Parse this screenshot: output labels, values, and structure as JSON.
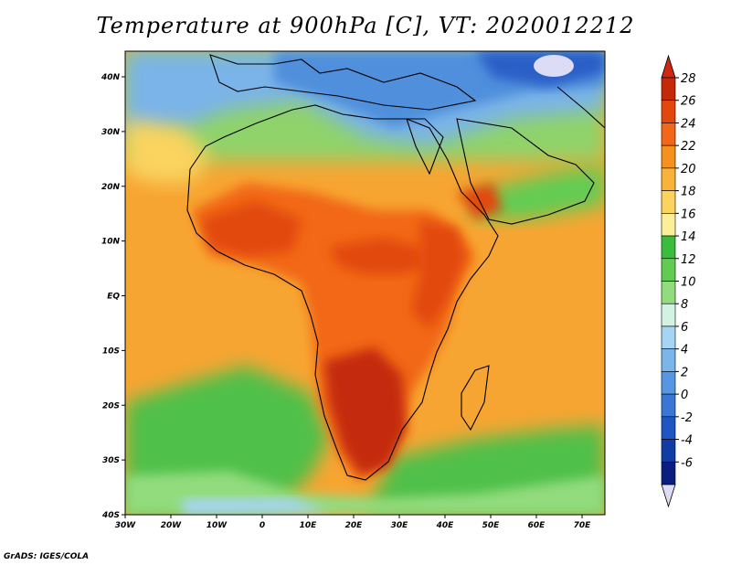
{
  "title": "Temperature at 900hPa [C], VT: 2020012212",
  "credit": "GrADS: IGES/COLA",
  "map": {
    "lon_ticks": [
      "30W",
      "20W",
      "10W",
      "0",
      "10E",
      "20E",
      "30E",
      "40E",
      "50E",
      "60E",
      "70E"
    ],
    "lat_ticks": [
      "40N",
      "30N",
      "20N",
      "10N",
      "EQ",
      "10S",
      "20S",
      "30S",
      "40S"
    ]
  },
  "colorbar": {
    "levels": [
      "28",
      "26",
      "24",
      "22",
      "20",
      "18",
      "16",
      "14",
      "12",
      "10",
      "8",
      "6",
      "4",
      "2",
      "0",
      "-2",
      "-4",
      "-6"
    ],
    "colors": [
      "#c42a0a",
      "#e2480e",
      "#f26818",
      "#f5921e",
      "#f9b23a",
      "#fbd35e",
      "#fbef9a",
      "#3cbc3c",
      "#62cc52",
      "#92dc7e",
      "#d2f3e2",
      "#a6d4f3",
      "#7bb5ea",
      "#5696e2",
      "#3a76d4",
      "#2055c4",
      "#103ca4",
      "#0a1e80"
    ],
    "top_color": "#d02810",
    "bottom_color": "#dcdcf6"
  }
}
